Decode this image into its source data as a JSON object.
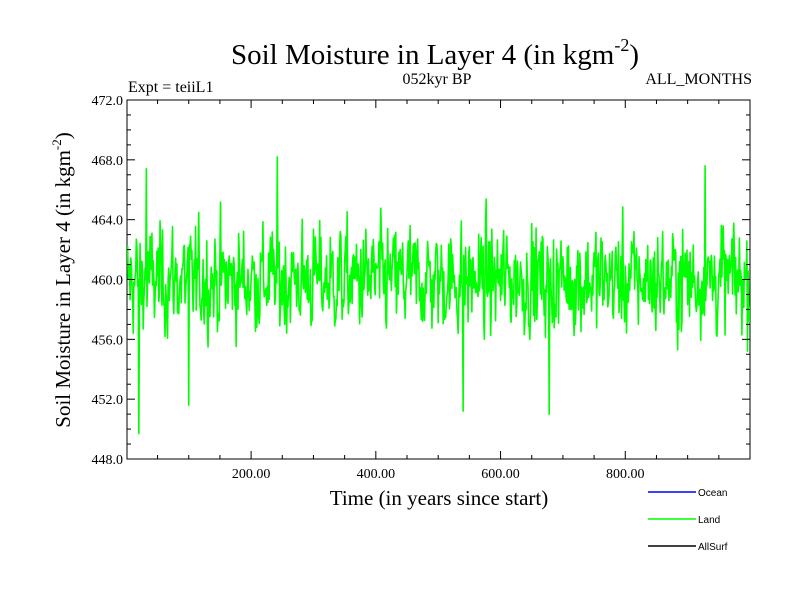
{
  "chart_data": {
    "type": "line",
    "title": "Soil Moisture in Layer 4 (in kgm",
    "title_superscript": "-2",
    "title_suffix": ")",
    "subtitle_left": "Expt = teiiL1",
    "subtitle_center": "052kyr BP",
    "subtitle_right": "ALL_MONTHS",
    "xlabel": "Time (in years since start)",
    "ylabel": "Soil Moisture in Layer 4 (in kgm",
    "ylabel_superscript": "-2",
    "ylabel_suffix": ")",
    "xlim": [
      1,
      1000
    ],
    "ylim": [
      448.0,
      472.0
    ],
    "x_ticks": [
      200,
      400,
      600,
      800
    ],
    "x_tick_labels": [
      "200.00",
      "400.00",
      "600.00",
      "800.00"
    ],
    "y_ticks": [
      448,
      452,
      456,
      460,
      464,
      468,
      472
    ],
    "y_tick_labels": [
      "448.0",
      "452.0",
      "456.0",
      "460.0",
      "464.0",
      "468.0",
      "472.0"
    ],
    "grid": false,
    "legend_position": "bottom-right, outside plot",
    "series": [
      {
        "name": "Ocean",
        "color": "#0000ff",
        "values": []
      },
      {
        "name": "Land",
        "color": "#00ff00",
        "x_start": 1,
        "x_step": 1,
        "summary": {
          "mean": 460.0,
          "min": 449.7,
          "max": 468.2,
          "typical_low": 455.0,
          "typical_high": 465.0
        },
        "extremes": [
          {
            "x": 20,
            "y": 449.7
          },
          {
            "x": 32,
            "y": 467.4
          },
          {
            "x": 100,
            "y": 451.6
          },
          {
            "x": 242,
            "y": 468.2
          },
          {
            "x": 540,
            "y": 451.2
          },
          {
            "x": 678,
            "y": 451.0
          },
          {
            "x": 928,
            "y": 467.6
          }
        ]
      },
      {
        "name": "AllSurf",
        "color": "#000000",
        "values": []
      }
    ]
  }
}
